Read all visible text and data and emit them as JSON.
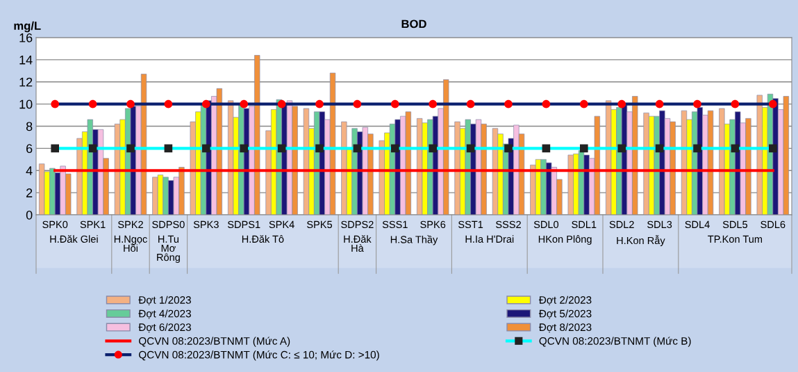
{
  "chart_data": {
    "type": "bar",
    "title": "BOD",
    "ylabel": "mg/L",
    "categories": [
      "SPK0",
      "SPK1",
      "SPK2",
      "SDPS0",
      "SPK3",
      "SDPS1",
      "SPK4",
      "SPK5",
      "SDPS2",
      "SSS1",
      "SPK6",
      "SST1",
      "SSS2",
      "SDL0",
      "SDL1",
      "SDL2",
      "SDL3",
      "SDL4",
      "SDL5",
      "SDL6"
    ],
    "series": [
      {
        "name": "Đợt 1/2023",
        "color": "#f4b183",
        "values": [
          4.6,
          6.9,
          8.2,
          3.4,
          8.4,
          10.3,
          7.6,
          9.6,
          8.4,
          6.7,
          8.7,
          8.4,
          7.8,
          4.5,
          5.4,
          10.3,
          9.2,
          9.4,
          9.6,
          10.8
        ]
      },
      {
        "name": "Đợt 2/2023",
        "color": "#ffff00",
        "values": [
          3.9,
          7.5,
          8.6,
          3.6,
          9.3,
          8.8,
          9.5,
          7.8,
          5.9,
          7.4,
          8.3,
          7.8,
          7.3,
          5.0,
          5.5,
          9.5,
          8.9,
          8.6,
          8.2,
          9.7
        ]
      },
      {
        "name": "Đợt 4/2023",
        "color": "#66cc99",
        "values": [
          4.2,
          8.6,
          9.6,
          3.4,
          9.9,
          9.9,
          10.4,
          9.3,
          7.8,
          8.2,
          8.6,
          8.6,
          6.4,
          5.0,
          5.8,
          9.7,
          8.9,
          9.3,
          8.6,
          10.9
        ]
      },
      {
        "name": "Đợt 5/2023",
        "color": "#1c1678",
        "values": [
          3.8,
          7.7,
          9.8,
          3.1,
          10.3,
          9.6,
          10.0,
          9.3,
          7.5,
          8.6,
          8.9,
          8.2,
          6.9,
          4.7,
          5.4,
          9.9,
          9.4,
          9.7,
          9.3,
          10.5
        ]
      },
      {
        "name": "Đợt 6/2023",
        "color": "#f6bfe0",
        "values": [
          4.4,
          7.7,
          9.8,
          3.4,
          10.7,
          9.8,
          10.3,
          8.6,
          7.9,
          8.9,
          9.6,
          8.6,
          8.1,
          4.3,
          5.1,
          9.3,
          8.7,
          9.0,
          8.3,
          9.5
        ]
      },
      {
        "name": "Đợt 8/2023",
        "color": "#f0903a",
        "values": [
          3.7,
          5.1,
          12.7,
          4.3,
          11.4,
          14.4,
          9.8,
          12.8,
          7.3,
          9.3,
          12.2,
          8.2,
          7.3,
          3.2,
          8.9,
          10.7,
          8.4,
          9.4,
          8.7,
          10.7
        ]
      },
      {
        "name": "QCVN 08:2023/BTNMT (Mức A)",
        "type": "line",
        "color": "#ff0000",
        "marker": "none",
        "values": [
          4,
          4,
          4,
          4,
          4,
          4,
          4,
          4,
          4,
          4,
          4,
          4,
          4,
          4,
          4,
          4,
          4,
          4,
          4,
          4
        ]
      },
      {
        "name": "QCVN 08:2023/BTNMT (Mức B)",
        "type": "line",
        "color": "#00ffff",
        "marker": "square",
        "colors": [
          "#222222",
          "#222222",
          "#222222",
          "#222222",
          "#222222",
          "#222222",
          "#222222",
          "#222222",
          "#222222",
          "#222222",
          "#222222",
          "#222222",
          "#222222",
          "#222222",
          "#222222",
          "#222222",
          "#222222",
          "#222222",
          "#222222",
          "#222222"
        ],
        "values": [
          6,
          6,
          6,
          6,
          6,
          6,
          6,
          6,
          6,
          6,
          6,
          6,
          6,
          6,
          6,
          6,
          6,
          6,
          6,
          6
        ]
      },
      {
        "name": "QCVN 08:2023/BTNMT (Mức C: ≤ 10; Mức D: >10)",
        "type": "line",
        "color": "#0a1f6e",
        "marker": "circle",
        "colors": [
          "#ff0000",
          "#ff0000",
          "#ff0000",
          "#ff0000",
          "#ff0000",
          "#ff0000",
          "#ff0000",
          "#ff0000",
          "#ff0000",
          "#ff0000",
          "#ff0000",
          "#ff0000",
          "#ff0000",
          "#ff0000",
          "#ff0000",
          "#ff0000",
          "#ff0000",
          "#ff0000",
          "#ff0000",
          "#ff0000"
        ],
        "values": [
          10,
          10,
          10,
          10,
          10,
          10,
          10,
          10,
          10,
          10,
          10,
          10,
          10,
          10,
          10,
          10,
          10,
          10,
          10,
          10
        ]
      }
    ],
    "annotations": [
      "H.Đăk Glei",
      "H.Ngọc\nHồi",
      "H.Tu\nMơ\nRông",
      "H.Đăk Tô",
      "H.Đăk\nHà",
      "H.Sa Thầy",
      "H.Ia H'Drai",
      "HKon Plông",
      "H.Kon Rẫy",
      "TP.Kon Tum"
    ],
    "ylim": [
      0,
      16
    ],
    "yticks": [
      0,
      2,
      4,
      6,
      8,
      10,
      12,
      14,
      16
    ],
    "grid": "y",
    "legend": "bottom"
  }
}
